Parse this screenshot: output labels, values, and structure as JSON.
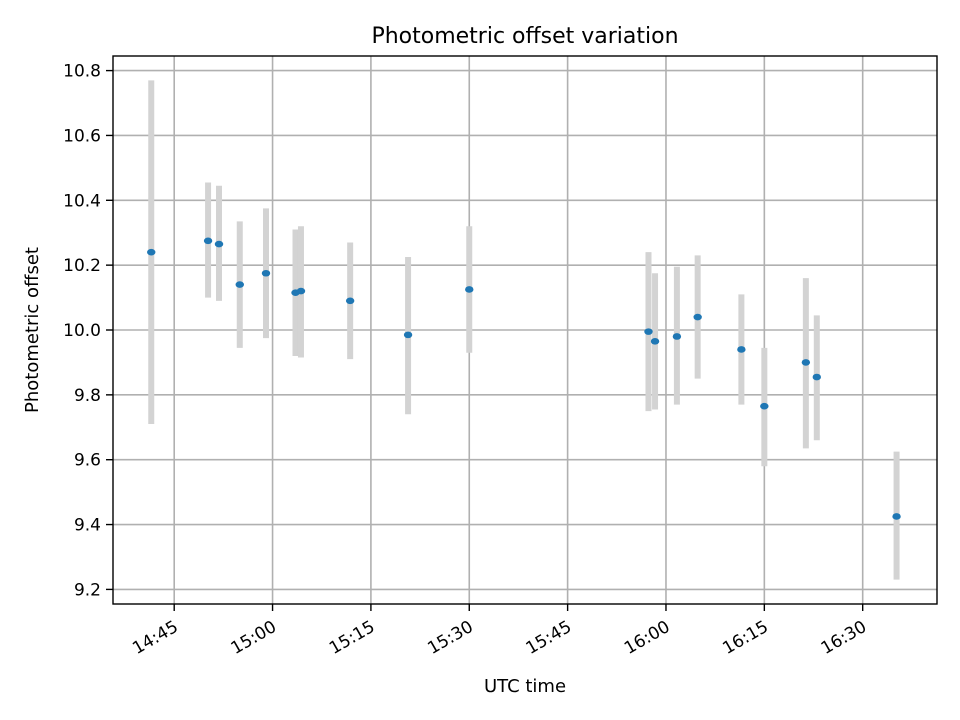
{
  "chart_data": {
    "type": "scatter",
    "title": "Photometric offset variation",
    "xlabel": "UTC time",
    "ylabel": "Photometric offset",
    "x_ticks": [
      "14:45",
      "15:00",
      "15:15",
      "15:30",
      "15:45",
      "16:00",
      "16:15",
      "16:30"
    ],
    "y_ticks": [
      "9.2",
      "9.4",
      "9.6",
      "9.8",
      "10.0",
      "10.2",
      "10.4",
      "10.6",
      "10.8"
    ],
    "xlim": [
      "14:35:40",
      "16:41:20"
    ],
    "ylim": [
      9.155,
      10.845
    ],
    "grid": true,
    "point_color": "#1f77b4",
    "errorbar_color": "#d3d3d3",
    "points": [
      {
        "x": "14:41:30",
        "y": 10.24,
        "ylow": 9.71,
        "yhigh": 10.77
      },
      {
        "x": "14:50:10",
        "y": 10.275,
        "ylow": 10.1,
        "yhigh": 10.455
      },
      {
        "x": "14:51:50",
        "y": 10.265,
        "ylow": 10.09,
        "yhigh": 10.445
      },
      {
        "x": "14:55:00",
        "y": 10.14,
        "ylow": 9.945,
        "yhigh": 10.335
      },
      {
        "x": "14:59:00",
        "y": 10.175,
        "ylow": 9.975,
        "yhigh": 10.375
      },
      {
        "x": "15:03:30",
        "y": 10.115,
        "ylow": 9.92,
        "yhigh": 10.31
      },
      {
        "x": "15:04:20",
        "y": 10.12,
        "ylow": 9.915,
        "yhigh": 10.32
      },
      {
        "x": "15:11:50",
        "y": 10.09,
        "ylow": 9.91,
        "yhigh": 10.27
      },
      {
        "x": "15:20:40",
        "y": 9.985,
        "ylow": 9.74,
        "yhigh": 10.225
      },
      {
        "x": "15:30:00",
        "y": 10.125,
        "ylow": 9.93,
        "yhigh": 10.32
      },
      {
        "x": "15:57:20",
        "y": 9.995,
        "ylow": 9.75,
        "yhigh": 10.24
      },
      {
        "x": "15:58:20",
        "y": 9.965,
        "ylow": 9.755,
        "yhigh": 10.175
      },
      {
        "x": "16:01:40",
        "y": 9.98,
        "ylow": 9.77,
        "yhigh": 10.195
      },
      {
        "x": "16:04:50",
        "y": 10.04,
        "ylow": 9.85,
        "yhigh": 10.23
      },
      {
        "x": "16:11:30",
        "y": 9.94,
        "ylow": 9.77,
        "yhigh": 10.11
      },
      {
        "x": "16:15:00",
        "y": 9.765,
        "ylow": 9.58,
        "yhigh": 9.945
      },
      {
        "x": "16:21:20",
        "y": 9.9,
        "ylow": 9.635,
        "yhigh": 10.16
      },
      {
        "x": "16:23:00",
        "y": 9.855,
        "ylow": 9.66,
        "yhigh": 10.045
      },
      {
        "x": "16:35:10",
        "y": 9.425,
        "ylow": 9.23,
        "yhigh": 9.625
      }
    ]
  }
}
